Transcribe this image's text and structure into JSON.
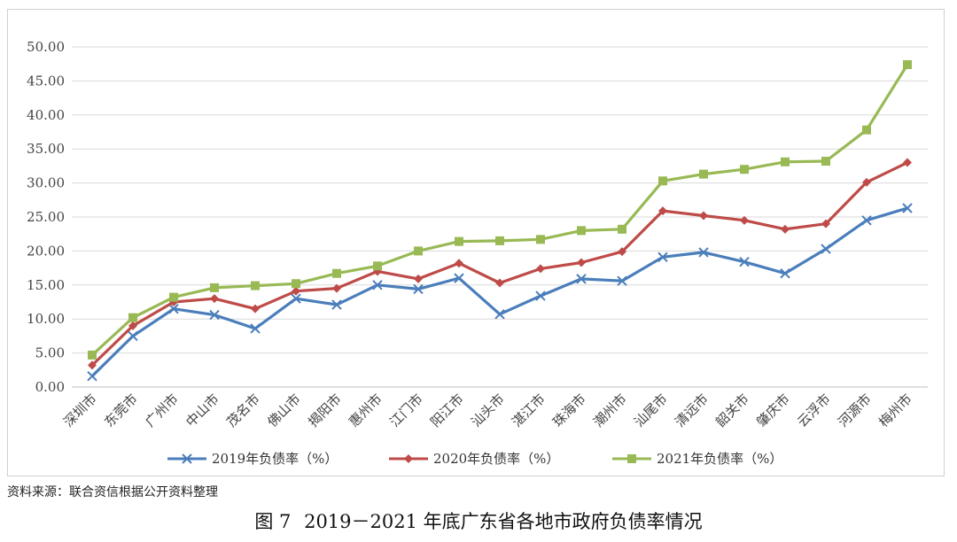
{
  "chart_data": {
    "type": "line",
    "categories": [
      "深圳市",
      "东莞市",
      "广州市",
      "中山市",
      "茂名市",
      "佛山市",
      "揭阳市",
      "惠州市",
      "江门市",
      "阳江市",
      "汕头市",
      "湛江市",
      "珠海市",
      "潮州市",
      "汕尾市",
      "清远市",
      "韶关市",
      "肇庆市",
      "云浮市",
      "河源市",
      "梅州市"
    ],
    "series": [
      {
        "name": "2019年负债率（%）",
        "color": "#4a7ebb",
        "marker": "x",
        "values": [
          1.6,
          7.5,
          11.5,
          10.6,
          8.6,
          13.0,
          12.1,
          15.0,
          14.4,
          16.0,
          10.7,
          13.4,
          15.9,
          15.6,
          19.1,
          19.8,
          18.4,
          16.7,
          20.3,
          24.5,
          26.3
        ]
      },
      {
        "name": "2020年负债率（%）",
        "color": "#be4b48",
        "marker": "diamond",
        "values": [
          3.2,
          9.0,
          12.5,
          13.0,
          11.5,
          14.1,
          14.5,
          17.0,
          15.9,
          18.2,
          15.3,
          17.4,
          18.3,
          19.9,
          25.9,
          25.2,
          24.5,
          23.2,
          24.0,
          30.1,
          33.0
        ]
      },
      {
        "name": "2021年负债率（%）",
        "color": "#98b954",
        "marker": "square",
        "values": [
          4.7,
          10.2,
          13.2,
          14.6,
          14.9,
          15.2,
          16.7,
          17.8,
          20.0,
          21.4,
          21.5,
          21.7,
          23.0,
          23.2,
          30.3,
          31.3,
          32.0,
          33.1,
          33.2,
          37.8,
          47.4
        ]
      }
    ],
    "ylim": [
      0,
      50
    ],
    "yticks": [
      "0.00",
      "5.00",
      "10.00",
      "15.00",
      "20.00",
      "25.00",
      "30.00",
      "35.00",
      "40.00",
      "45.00",
      "50.00"
    ],
    "grid": true,
    "legend_position": "bottom"
  },
  "source_note": "资料来源：联合资信根据公开资料整理",
  "figure": {
    "number": "图 7",
    "caption": "2019－2021 年底广东省各地市政府负债率情况"
  }
}
